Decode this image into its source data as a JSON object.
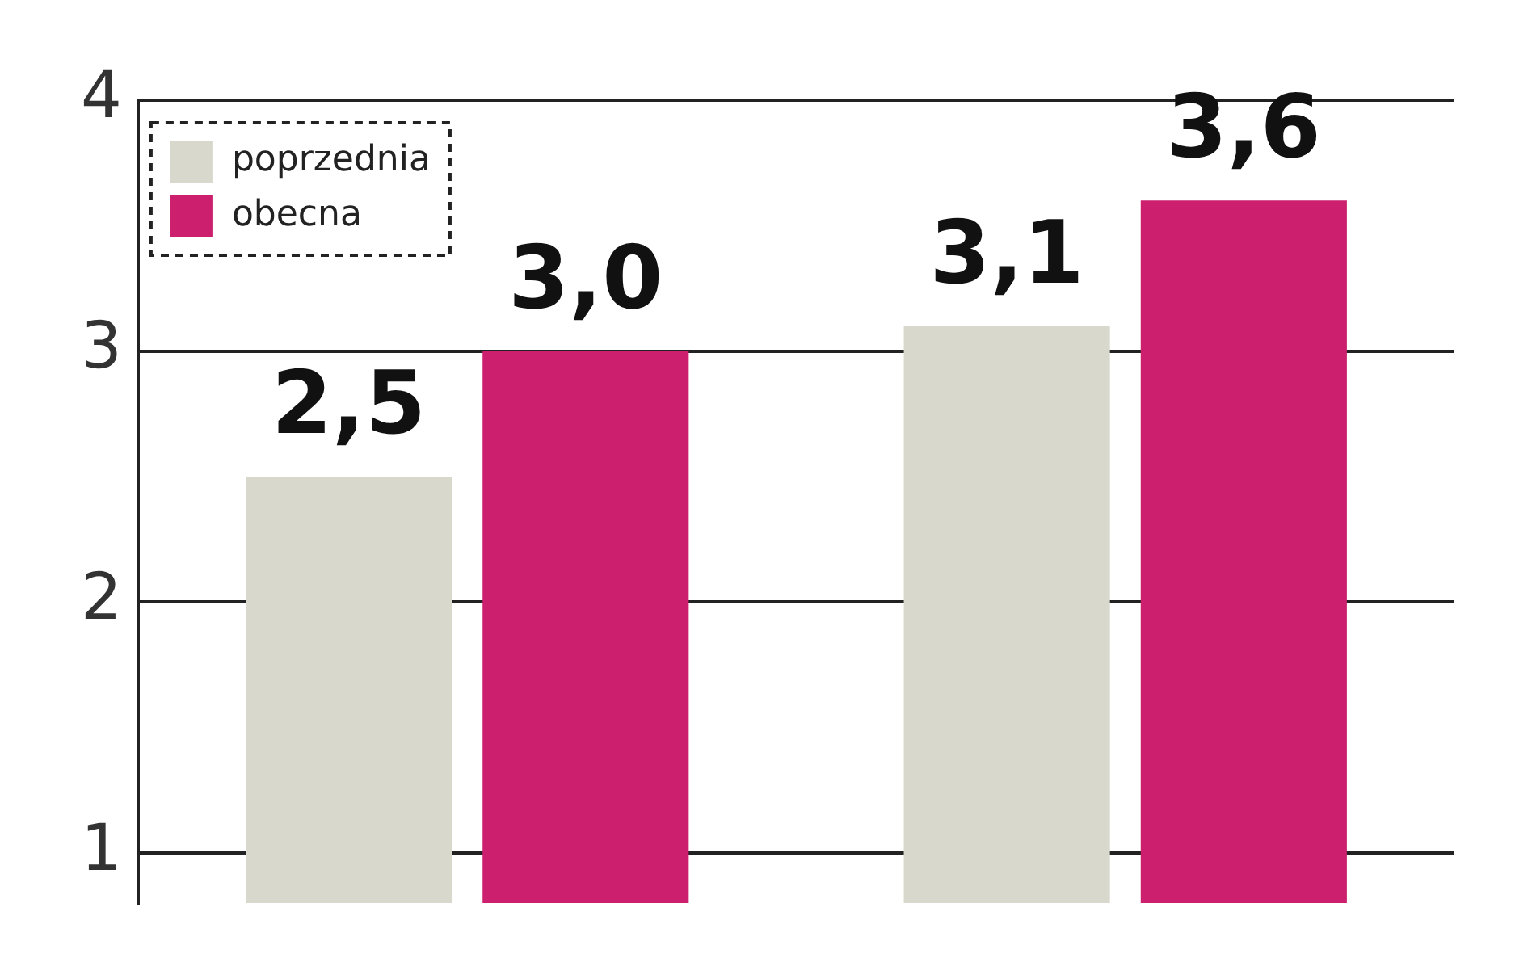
{
  "chart_data": {
    "type": "bar",
    "categories": [
      null,
      null
    ],
    "series": [
      {
        "name": "poprzednia",
        "color": "#d9d8cc",
        "values": [
          2.5,
          3.1
        ],
        "value_labels": [
          "2,5",
          "3,1"
        ]
      },
      {
        "name": "obecna",
        "color": "#cc1f6e",
        "values": [
          3.0,
          3.6
        ],
        "value_labels": [
          "3,0",
          "3,6"
        ]
      }
    ],
    "ylim": [
      0.8,
      4
    ],
    "yticks": [
      1,
      2,
      3,
      4
    ],
    "grid": "y",
    "legend": "top left"
  }
}
